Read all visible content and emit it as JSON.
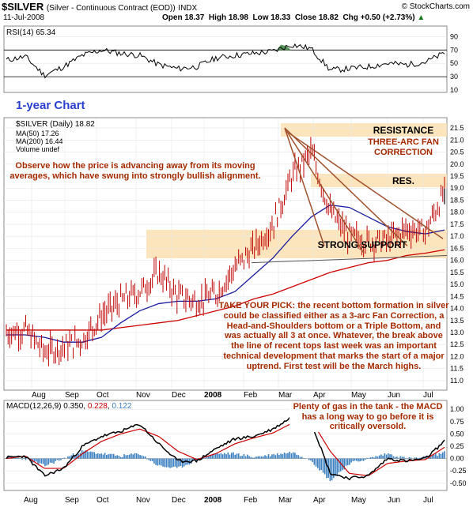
{
  "header": {
    "symbol": "$SILVER",
    "description": "(Silver - Continuous Contract (EOD))",
    "exchange": "INDX",
    "date": "11-Jul-2008",
    "ohlc": "Open 18.37  High 18.98  Low 18.33  Close 18.82  Chg +0.50 (+2.73%)",
    "ohlc_arrow": "▲",
    "copyright": "© StockCharts.com"
  },
  "rsi_panel": {
    "label": "RSI(14) 65.34",
    "ticks": [
      "90",
      "70",
      "50",
      "30",
      "10"
    ]
  },
  "price_panel": {
    "chart_label": "1-year Chart",
    "legend": [
      {
        "text": "$SILVER (Daily) 18.82",
        "color": "#000000"
      },
      {
        "text": "MA(50) 17.26",
        "color": "#1a1aa0"
      },
      {
        "text": "MA(200) 16.44",
        "color": "#cc0000"
      },
      {
        "text": "Volume undef",
        "color": "#555555"
      }
    ],
    "y_ticks": [
      "21.5",
      "21.0",
      "20.5",
      "20.0",
      "19.5",
      "19.0",
      "18.5",
      "18.0",
      "17.5",
      "17.0",
      "16.5",
      "16.0",
      "15.5",
      "15.0",
      "14.5",
      "14.0",
      "13.5",
      "13.0",
      "12.5",
      "12.0",
      "11.5",
      "11.0"
    ],
    "annotations": {
      "resistance": "RESISTANCE",
      "fan": "THREE-ARC FAN CORRECTION",
      "res": "RES.",
      "support": "STRONG SUPPORT",
      "observe": "Observe how the price is advancing away from its moving averages, which have swung into strongly bullish alignment.",
      "pick": "TAKE YOUR PICK: the recent bottom formation in silver could be classified either as a 3-arc Fan Correction, a Head-and-Shoulders bottom or a Triple Bottom, and was actually all 3 at once. Whatever, the break above the line of recent tops last week was an important technical development that marks the start of a major uptrend. First test will be the March highs."
    }
  },
  "macd_panel": {
    "label_prefix": "MACD(12,26,9)",
    "macd_value": "0.350",
    "signal_value": "0.228",
    "hist_value": "0.122",
    "y_ticks": [
      "1.00",
      "0.75",
      "0.50",
      "0.25",
      "0.00",
      "-0.25",
      "-0.50"
    ],
    "annotation": "Plenty of gas in the tank - the MACD has a long way to go before it is critically oversold."
  },
  "x_axis": [
    "Aug",
    "Sep",
    "Oct",
    "Nov",
    "Dec",
    "2008",
    "Feb",
    "Mar",
    "Apr",
    "May",
    "Jun",
    "Jul"
  ],
  "colors": {
    "price_bar": "#c00000",
    "ma50": "#1a1aa0",
    "ma200": "#cc0000",
    "zone": "#fbe0b0",
    "annotation": "#a52a00",
    "fan_line": "#a0522d",
    "trendline": "#555555",
    "macd_hist": "#3a7fc0",
    "rsi_fill": "#2e7d32"
  },
  "chart_data": {
    "type": "line",
    "title": "$SILVER (Daily)",
    "x": [
      "Jul",
      "Aug",
      "Aug",
      "Sep",
      "Sep",
      "Oct",
      "Oct",
      "Nov",
      "Nov",
      "Dec",
      "Dec",
      "2008",
      "Jan",
      "Feb",
      "Feb",
      "Mar",
      "Mar",
      "Apr",
      "Apr",
      "May",
      "May",
      "Jun",
      "Jun",
      "Jul"
    ],
    "ylim": [
      10.8,
      21.7
    ],
    "series": [
      {
        "name": "$SILVER",
        "values": [
          13.0,
          13.1,
          12.2,
          12.4,
          12.7,
          13.7,
          14.3,
          14.7,
          15.5,
          14.5,
          14.3,
          14.6,
          15.7,
          16.5,
          17.5,
          19.5,
          20.5,
          18.0,
          17.0,
          16.8,
          16.8,
          17.3,
          17.2,
          18.82
        ]
      },
      {
        "name": "MA(50)",
        "values": [
          12.9,
          12.9,
          12.8,
          12.6,
          12.6,
          12.8,
          13.4,
          13.9,
          14.2,
          14.3,
          14.3,
          14.4,
          14.7,
          15.4,
          16.1,
          17.0,
          17.8,
          18.3,
          18.2,
          17.8,
          17.4,
          17.2,
          17.1,
          17.26
        ]
      },
      {
        "name": "MA(200)",
        "values": [
          13.1,
          13.1,
          13.1,
          13.1,
          13.1,
          13.1,
          13.2,
          13.3,
          13.4,
          13.5,
          13.7,
          13.9,
          14.1,
          14.4,
          14.6,
          14.9,
          15.2,
          15.5,
          15.7,
          15.9,
          16.0,
          16.2,
          16.3,
          16.44
        ]
      }
    ],
    "rsi": {
      "name": "RSI(14)",
      "ylim": [
        10,
        100
      ],
      "values": [
        55,
        60,
        32,
        45,
        62,
        70,
        65,
        62,
        48,
        42,
        45,
        58,
        62,
        65,
        68,
        78,
        72,
        40,
        42,
        45,
        50,
        48,
        52,
        65.34
      ]
    },
    "macd": {
      "name": "MACD(12,26,9)",
      "ylim": [
        -0.6,
        1.1
      ],
      "macd": [
        0.02,
        0.05,
        -0.35,
        -0.2,
        0.25,
        0.45,
        0.55,
        0.7,
        0.3,
        -0.05,
        -0.05,
        0.2,
        0.4,
        0.45,
        0.6,
        0.85,
        0.75,
        -0.3,
        -0.4,
        -0.35,
        0.0,
        -0.05,
        0.0,
        0.35
      ],
      "signal": [
        0.0,
        0.05,
        -0.2,
        -0.2,
        0.1,
        0.35,
        0.5,
        0.6,
        0.45,
        0.15,
        -0.02,
        0.1,
        0.3,
        0.42,
        0.52,
        0.72,
        0.78,
        0.15,
        -0.3,
        -0.35,
        -0.1,
        -0.05,
        -0.02,
        0.228
      ]
    }
  }
}
